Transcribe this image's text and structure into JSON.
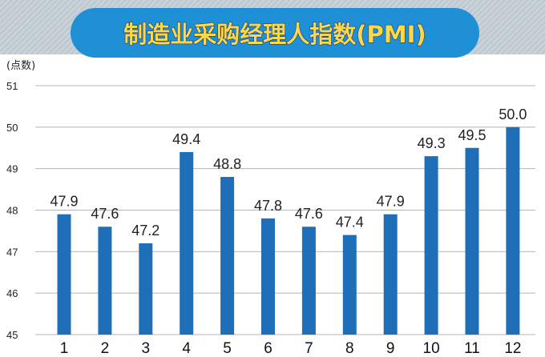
{
  "chart_data": {
    "type": "bar",
    "title": "制造业采购经理人指数(PMI)",
    "ylabel": "(点数)",
    "xlabel": "",
    "categories": [
      "1",
      "2",
      "3",
      "4",
      "5",
      "6",
      "7",
      "8",
      "9",
      "10",
      "11",
      "12"
    ],
    "values": [
      47.9,
      47.6,
      47.2,
      49.4,
      48.8,
      47.8,
      47.6,
      47.4,
      47.9,
      49.3,
      49.5,
      50.0
    ],
    "value_labels": [
      "47.9",
      "47.6",
      "47.2",
      "49.4",
      "48.8",
      "47.8",
      "47.6",
      "47.4",
      "47.9",
      "49.3",
      "49.5",
      "50.0"
    ],
    "ylim": [
      45,
      51
    ],
    "yticks": [
      "45",
      "46",
      "47",
      "48",
      "49",
      "50",
      "51"
    ],
    "grid": true,
    "legend": "none"
  },
  "colors": {
    "bar": "#1f6fb8",
    "title_banner": "#1f8fd6",
    "title_text": "#ffd84a",
    "header_background": "#c8d0d6",
    "grid": "#b5b5b5"
  }
}
